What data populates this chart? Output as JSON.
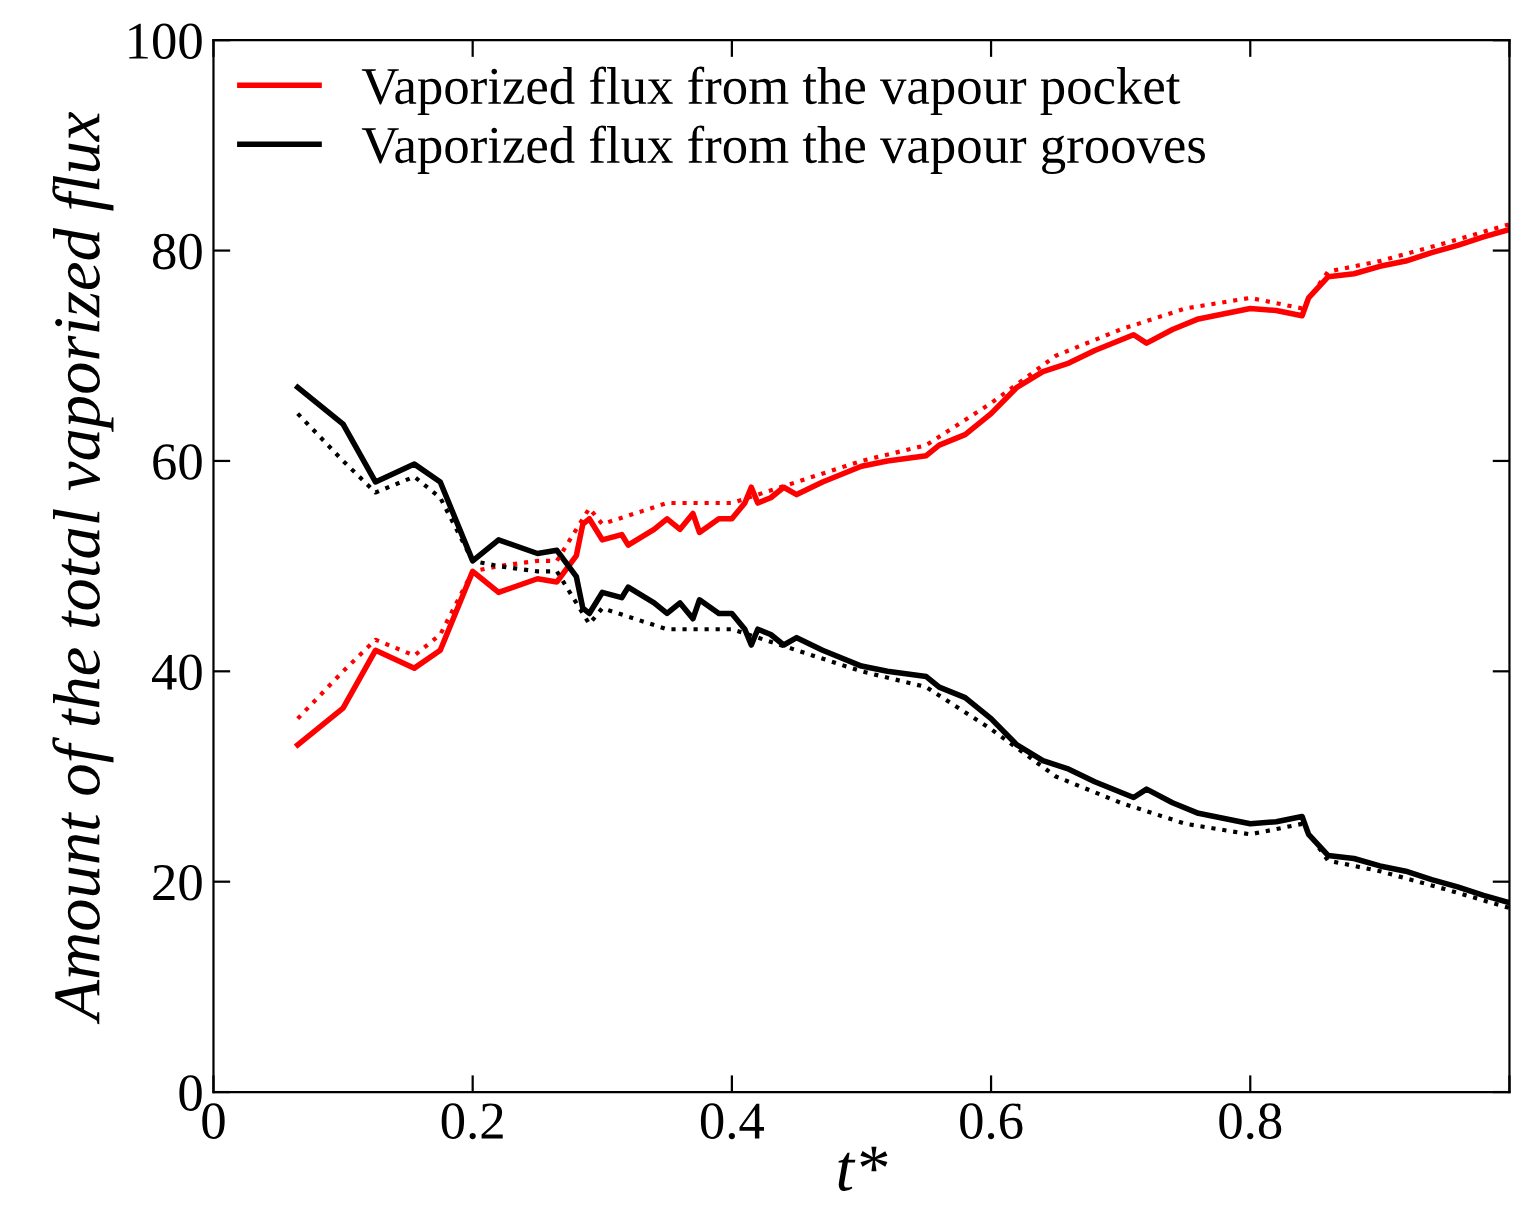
{
  "chart_data": {
    "type": "line",
    "xlabel": "t*",
    "ylabel": "Amount of the total vaporized flux",
    "xlim": [
      0,
      1
    ],
    "ylim": [
      0,
      100
    ],
    "xticks": [
      0,
      0.2,
      0.4,
      0.6,
      0.8,
      {
        "value": 1,
        "label": null
      }
    ],
    "yticks": [
      0,
      20,
      40,
      60,
      80,
      100
    ],
    "grid": false,
    "legend": "top left",
    "series": [
      {
        "name": "Vaporized flux from the vapour pocket",
        "color": "#ff0000",
        "line_style": "solid",
        "x": [
          0.065,
          0.1,
          0.125,
          0.155,
          0.175,
          0.2,
          0.22,
          0.25,
          0.265,
          0.28,
          0.285,
          0.29,
          0.3,
          0.315,
          0.32,
          0.34,
          0.35,
          0.36,
          0.37,
          0.375,
          0.39,
          0.4,
          0.41,
          0.415,
          0.42,
          0.43,
          0.44,
          0.45,
          0.47,
          0.5,
          0.52,
          0.55,
          0.56,
          0.58,
          0.6,
          0.62,
          0.64,
          0.66,
          0.68,
          0.7,
          0.71,
          0.72,
          0.74,
          0.76,
          0.78,
          0.8,
          0.82,
          0.84,
          0.845,
          0.86,
          0.88,
          0.9,
          0.92,
          0.94,
          0.96,
          0.98,
          1.0
        ],
        "values": [
          33,
          36.5,
          42,
          40.3,
          42,
          49.5,
          47.5,
          48.8,
          48.5,
          51,
          54,
          54.5,
          52.5,
          53,
          52,
          53.5,
          54.5,
          53.5,
          55,
          53.2,
          54.5,
          54.5,
          56,
          57.5,
          56,
          56.5,
          57.5,
          56.8,
          58,
          59.5,
          60,
          60.5,
          61.5,
          62.5,
          64.5,
          67,
          68.5,
          69.3,
          70.5,
          71.5,
          72,
          71.2,
          72.5,
          73.5,
          74,
          74.5,
          74.3,
          73.8,
          75.5,
          77.5,
          77.8,
          78.5,
          79,
          79.8,
          80.5,
          81.3,
          82
        ]
      },
      {
        "name": "Vaporized flux from the vapour grooves",
        "color": "#000000",
        "line_style": "solid",
        "x": [
          0.065,
          0.1,
          0.125,
          0.155,
          0.175,
          0.2,
          0.22,
          0.25,
          0.265,
          0.28,
          0.285,
          0.29,
          0.3,
          0.315,
          0.32,
          0.34,
          0.35,
          0.36,
          0.37,
          0.375,
          0.39,
          0.4,
          0.41,
          0.415,
          0.42,
          0.43,
          0.44,
          0.45,
          0.47,
          0.5,
          0.52,
          0.55,
          0.56,
          0.58,
          0.6,
          0.62,
          0.64,
          0.66,
          0.68,
          0.7,
          0.71,
          0.72,
          0.74,
          0.76,
          0.78,
          0.8,
          0.82,
          0.84,
          0.845,
          0.86,
          0.88,
          0.9,
          0.92,
          0.94,
          0.96,
          0.98,
          1.0
        ],
        "values": [
          67,
          63.5,
          58,
          59.7,
          58,
          50.5,
          52.5,
          51.2,
          51.5,
          49,
          46,
          45.5,
          47.5,
          47,
          48,
          46.5,
          45.5,
          46.5,
          45,
          46.8,
          45.5,
          45.5,
          44,
          42.5,
          44,
          43.5,
          42.5,
          43.2,
          42,
          40.5,
          40,
          39.5,
          38.5,
          37.5,
          35.5,
          33,
          31.5,
          30.7,
          29.5,
          28.5,
          28,
          28.8,
          27.5,
          26.5,
          26,
          25.5,
          25.7,
          26.2,
          24.5,
          22.5,
          22.2,
          21.5,
          21,
          20.2,
          19.5,
          18.7,
          18
        ]
      },
      {
        "color": "#ff0000",
        "line_style": "dotted",
        "x": [
          0.065,
          0.1,
          0.125,
          0.155,
          0.175,
          0.2,
          0.22,
          0.25,
          0.265,
          0.29,
          0.3,
          0.35,
          0.4,
          0.45,
          0.5,
          0.55,
          0.6,
          0.65,
          0.7,
          0.75,
          0.8,
          0.84,
          0.86,
          0.9,
          0.95,
          1.0
        ],
        "values": [
          35.5,
          40,
          43,
          41.5,
          43.5,
          49.5,
          50,
          50.5,
          50.5,
          55.5,
          54,
          56,
          56,
          58,
          60,
          61.5,
          65.5,
          70,
          72.5,
          74.5,
          75.5,
          74.5,
          78,
          79,
          80.7,
          82.5
        ]
      },
      {
        "color": "#000000",
        "line_style": "dotted",
        "x": [
          0.065,
          0.1,
          0.125,
          0.155,
          0.175,
          0.2,
          0.22,
          0.25,
          0.265,
          0.29,
          0.3,
          0.35,
          0.4,
          0.45,
          0.5,
          0.55,
          0.6,
          0.65,
          0.7,
          0.75,
          0.8,
          0.84,
          0.86,
          0.9,
          0.95,
          1.0
        ],
        "values": [
          64.5,
          60,
          57,
          58.5,
          56.5,
          50.5,
          50,
          49.5,
          49.5,
          44.5,
          46,
          44,
          44,
          42,
          40,
          38.5,
          34.5,
          30,
          27.5,
          25.5,
          24.5,
          25.5,
          22,
          21,
          19.3,
          17.5
        ]
      }
    ]
  }
}
